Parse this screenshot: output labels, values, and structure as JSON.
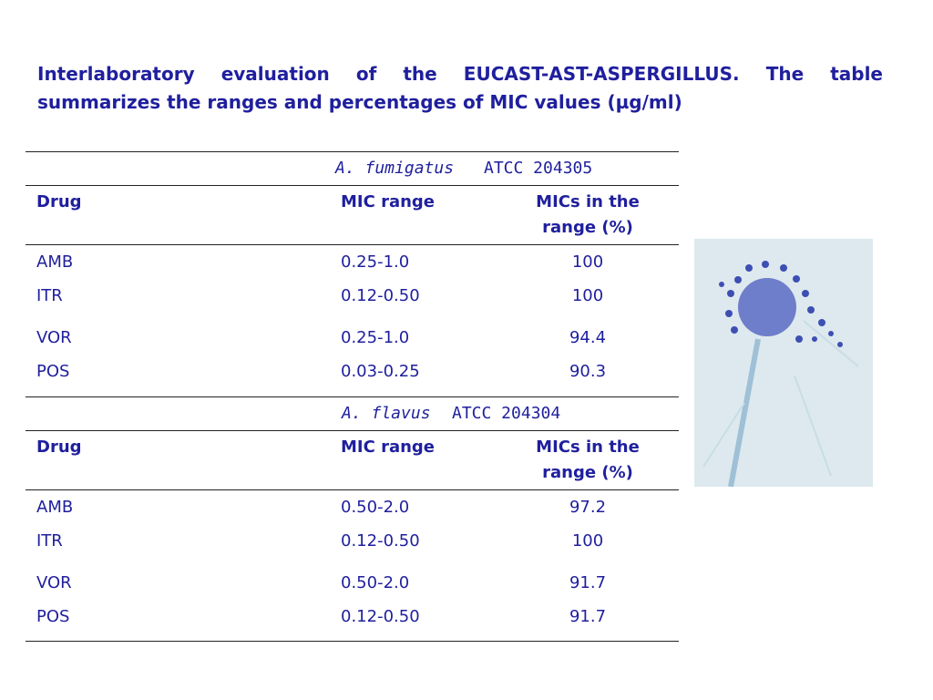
{
  "title": "Interlaboratory evaluation of the EUCAST-AST-ASPERGILLUS. The table summarizes the ranges and percentages of MIC values (µg/ml)",
  "table": {
    "sections": [
      {
        "organism": "A. fumigatus",
        "strain": "ATCC 204305",
        "header": [
          "Drug",
          "MIC range",
          "MICs in the range (%)"
        ],
        "rows": [
          [
            "AMB",
            "0.25-1.0",
            "100"
          ],
          [
            "ITR",
            "0.12-0.50",
            "100"
          ],
          [
            "VOR",
            "0.25-1.0",
            "94.4"
          ],
          [
            "POS",
            "0.03-0.25",
            "90.3"
          ]
        ]
      },
      {
        "organism": "A. flavus",
        "strain": "ATCC 204304",
        "header": [
          "Drug",
          "MIC range",
          "MICs in the range (%)"
        ],
        "rows": [
          [
            "AMB",
            "0.50-2.0",
            "97.2"
          ],
          [
            "ITR",
            "0.12-0.50",
            "100"
          ],
          [
            "VOR",
            "0.50-2.0",
            "91.7"
          ],
          [
            "POS",
            "0.12-0.50",
            "91.7"
          ]
        ]
      }
    ]
  }
}
